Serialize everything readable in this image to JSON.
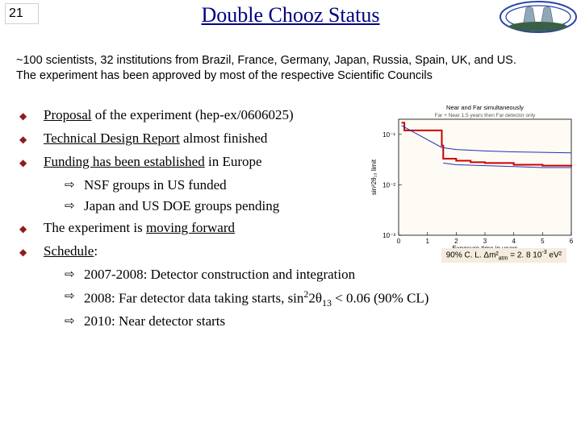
{
  "header": {
    "page_number": "21",
    "title": "Double Chooz Status"
  },
  "intro": {
    "line1": "~100 scientists, 32 institutions from Brazil, France, Germany, Japan, Russia, Spain, UK, and US.",
    "line2": "The experiment has been approved by most of the respective Scientific Councils"
  },
  "bullets": {
    "b1_pre": "Proposal",
    "b1_post": " of the experiment (hep-ex/0606025)",
    "b2_pre": "Technical Design Report",
    "b2_post": " almost finished",
    "b3_pre": "Funding has been established",
    "b3_post": " in Europe",
    "b3_s1": "NSF groups in US funded",
    "b3_s2": "Japan and US DOE groups pending",
    "b4_pre": "The experiment is ",
    "b4_ul": "moving forward",
    "b5_pre": "Schedule",
    "b5_post": ":",
    "b5_s1": "2007-2008: Detector construction and integration",
    "b5_s2_a": "2008: Far detector data taking starts, sin",
    "b5_s2_b": "2θ",
    "b5_s2_c": " < 0.06 (90% CL)",
    "b5_s3": "2010: Near detector starts"
  },
  "chart": {
    "title": "Near and Far simultaneously",
    "subtitle": "Far + Near 1.5 years then Far detector only",
    "xlabel": "Exposure time in years",
    "ylabel": "sin²2θ₁₃ limit",
    "xlim": [
      0,
      6
    ],
    "ylim": [
      0.001,
      0.2
    ],
    "yscale": "log",
    "xticks": [
      0,
      1,
      2,
      3,
      4,
      5,
      6
    ],
    "yticks": [
      0.001,
      0.01,
      0.1
    ],
    "yticklabels": [
      "10⁻³",
      "10⁻²",
      "10⁻¹"
    ],
    "series": [
      {
        "name": "red-step",
        "type": "stepline",
        "color": "#cc0000",
        "width": 2,
        "x": [
          0.1,
          0.2,
          1.5,
          1.55,
          2.0,
          2.5,
          3.0,
          4.0,
          5.0,
          6.0
        ],
        "y": [
          0.17,
          0.12,
          0.06,
          0.033,
          0.03,
          0.028,
          0.027,
          0.025,
          0.024,
          0.023
        ]
      },
      {
        "name": "blue1",
        "type": "line",
        "color": "#2030c0",
        "width": 1,
        "x": [
          0.1,
          1.5,
          2.0,
          3.0,
          4.0,
          5.0,
          6.0
        ],
        "y": [
          0.15,
          0.055,
          0.05,
          0.047,
          0.045,
          0.044,
          0.043
        ]
      },
      {
        "name": "blue2",
        "type": "line",
        "color": "#2030c0",
        "width": 1,
        "x": [
          1.55,
          2.0,
          3.0,
          4.0,
          5.0,
          6.0
        ],
        "y": [
          0.027,
          0.025,
          0.024,
          0.023,
          0.022,
          0.022
        ]
      }
    ],
    "background": "#ffffff",
    "grid_color": "#f0e8d8",
    "caption_prefix": "90% C. L. Δm²",
    "caption_sub": "atm",
    "caption_mid": " = 2. 8 10",
    "caption_sup": "-3",
    "caption_suffix": " eV²"
  },
  "logo": {
    "outer_color": "#2844aa",
    "tower_color": "#8fa8b8",
    "base_color": "#3a5f47"
  },
  "glyphs": {
    "diamond": "◆",
    "arrow": "⇨"
  }
}
